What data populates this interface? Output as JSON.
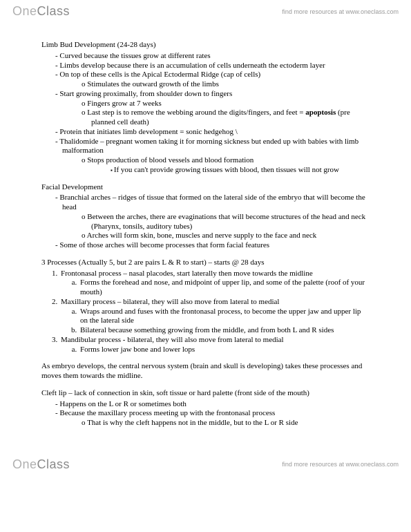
{
  "brand": {
    "one": "One",
    "class": "Class"
  },
  "tagline": "find more resources at www.oneclass.com",
  "sec1_title": "Limb Bud Development (24-28 days)",
  "s1b1": "Curved because the tissues grow at different rates",
  "s1b2": "Limbs develop because there is an accumulation of cells underneath the ectoderm layer",
  "s1b3": "On top of these cells is the Apical Ectodermal Ridge (cap of cells)",
  "s1b3o1": "Stimulates the outward growth of the limbs",
  "s1b4": "Start growing proximally, from shoulder down to fingers",
  "s1b4o1": "Fingers grow at 7 weeks",
  "s1b4o2a": "Last step is to remove the webbing around the digits/fingers, and feet = ",
  "s1b4o2b": "apoptosis",
  "s1b4o2c": " (pre planned cell death)",
  "s1b5": "Protein that initiates limb development = sonic hedgehog \\",
  "s1b6": "Thalidomide – pregnant women taking it for morning sickness but ended up with babies with limb malformation",
  "s1b6o1": "Stops production of blood vessels and blood formation",
  "s1b6o1s1": "If you can't provide growing tissues with blood, then tissues will not grow",
  "sec2_title": "Facial Development",
  "s2b1": "Branchial arches – ridges of tissue that formed on the lateral side of the embryo that will become the head",
  "s2b1o1": "Between the arches, there are evaginations that will become structures of the head and neck (Pharynx, tonsils, auditory tubes)",
  "s2b1o2": "Arches will form skin, bone, muscles and nerve supply to the face and neck",
  "s2b2": "Some of those arches will become processes that form facial features",
  "sec3_title": "3 Processes (Actually 5, but 2 are pairs L & R to start) – starts @ 28 days",
  "p1": "Frontonasal process – nasal placodes, start laterally then move towards the midline",
  "p1a": "Forms the forehead and nose, and midpoint of upper lip, and some of the palette (roof of your mouth)",
  "p2": "Maxillary process – bilateral, they will also move from lateral to medial",
  "p2a": "Wraps around and fuses with the frontonasal process, to become the upper jaw and upper lip on the lateral side",
  "p2b": "Bilateral because something growing from the middle, and from both L and R sides",
  "p3": "Mandibular process - bilateral, they will also move from lateral to medial",
  "p3a": "Forms lower jaw bone and lower lops",
  "paraCNS": "As embryo develops, the central nervous system (brain and skull is developing) takes these processes and moves them towards the midline.",
  "cleft_title": "Cleft lip – lack of connection in skin, soft tissue or hard palette (front side of the mouth)",
  "c1": "Happens on the L or R or sometimes both",
  "c2": "Because the maxillary process meeting up with the frontonasal process",
  "c2o1": "That is why the cleft happens not in the middle, but to the L or R side"
}
